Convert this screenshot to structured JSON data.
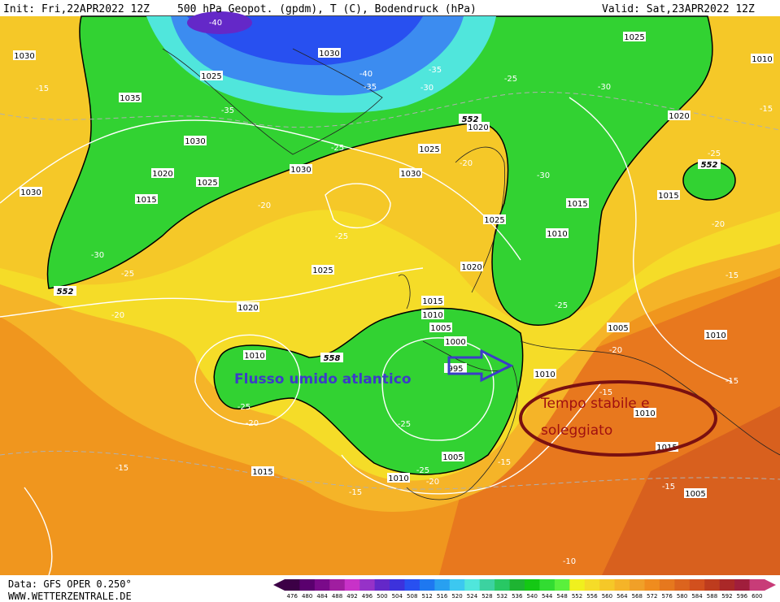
{
  "header": {
    "init": "Init: Fri,22APR2022 12Z",
    "title": "500 hPa Geopot. (gpdm), T (C), Bodendruck (hPa)",
    "valid": "Valid: Sat,23APR2022 12Z"
  },
  "footer": {
    "data": "Data: GFS OPER 0.250°",
    "site": "WWW.WETTERZENTRALE.DE"
  },
  "annotations": {
    "flow": "Flusso umido atlantico",
    "stable": [
      "Tempo stabile e",
      "soleggiato"
    ]
  },
  "map_labels": {
    "pressure": [
      1030,
      1025,
      1035,
      1030,
      1020,
      1025,
      1015,
      1030,
      1030,
      1025,
      1030,
      1025,
      1030,
      1020,
      1020,
      1015,
      1015,
      1025,
      1010,
      1020,
      1025,
      1020,
      1015,
      1010,
      1005,
      1000,
      995,
      1010,
      1005,
      1010,
      1010,
      1015,
      1005,
      1010,
      1015,
      1005,
      1010,
      1010
    ],
    "temperature": [
      -40,
      -15,
      -35,
      -40,
      -35,
      -35,
      -30,
      -25,
      -30,
      -25,
      -20,
      -30,
      -25,
      -20,
      -25,
      -20,
      -30,
      -25,
      -20,
      -25,
      -15,
      -20,
      -25,
      -20,
      -25,
      -25,
      -20,
      -15,
      -15,
      -15,
      -15,
      -15,
      -10,
      -15,
      -15
    ],
    "height": [
      552,
      552,
      552,
      558
    ]
  },
  "colorbar": {
    "values": [
      476,
      480,
      484,
      488,
      492,
      496,
      500,
      504,
      508,
      512,
      516,
      520,
      524,
      528,
      532,
      536,
      540,
      544,
      548,
      552,
      556,
      560,
      564,
      568,
      572,
      576,
      580,
      584,
      588,
      592,
      596,
      600
    ],
    "colors": [
      "#3c0046",
      "#5a006e",
      "#7a0a8a",
      "#a01ea0",
      "#c832c8",
      "#9632c8",
      "#6428c8",
      "#3c32dc",
      "#2850f0",
      "#1e78f0",
      "#28a0f0",
      "#3cc8f0",
      "#50e6dc",
      "#3cd2a0",
      "#28c864",
      "#1eb432",
      "#14c814",
      "#32dc32",
      "#5af03c",
      "#f0f01e",
      "#f5dc28",
      "#f5c828",
      "#f5b428",
      "#f0a028",
      "#f08c1e",
      "#e6781e",
      "#dc641e",
      "#d2501e",
      "#be3c1e",
      "#aa2828",
      "#a01e3c",
      "#c83c78"
    ]
  }
}
